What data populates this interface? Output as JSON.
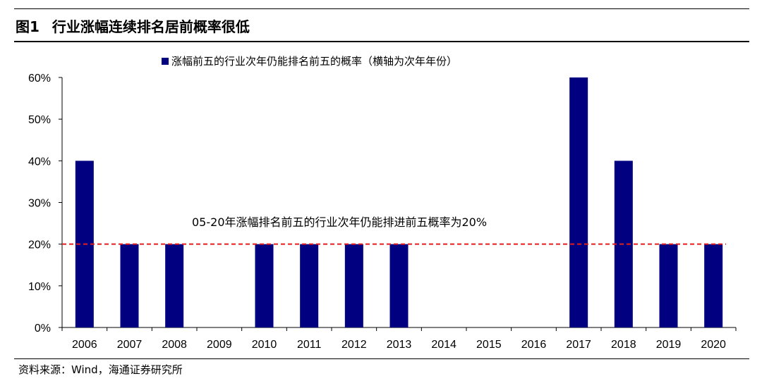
{
  "figure": {
    "label": "图1",
    "title": "行业涨幅连续排名居前概率很低",
    "source": "资料来源：Wind，海通证券研究所"
  },
  "chart_data": {
    "type": "bar",
    "categories": [
      "2006",
      "2007",
      "2008",
      "2009",
      "2010",
      "2011",
      "2012",
      "2013",
      "2014",
      "2015",
      "2016",
      "2017",
      "2018",
      "2019",
      "2020"
    ],
    "series": [
      {
        "name": "涨幅前五的行业次年仍能排名前五的概率（横轴为次年年份）",
        "values": [
          40,
          20,
          20,
          0,
          20,
          20,
          20,
          20,
          0,
          0,
          0,
          60,
          40,
          20,
          20
        ],
        "color": "#000080"
      }
    ],
    "ylim": [
      0,
      60
    ],
    "yticks": [
      0,
      10,
      20,
      30,
      40,
      50,
      60
    ],
    "ytick_labels": [
      "0%",
      "10%",
      "20%",
      "30%",
      "40%",
      "50%",
      "60%"
    ],
    "reference_line": {
      "value": 20,
      "label": "05-20年涨幅排名前五的行业次年仍能排进前五概率为20%",
      "color": "#e02020",
      "style": "dashed"
    },
    "legend_position": "top",
    "grid": false,
    "xlabel": "",
    "ylabel": ""
  }
}
